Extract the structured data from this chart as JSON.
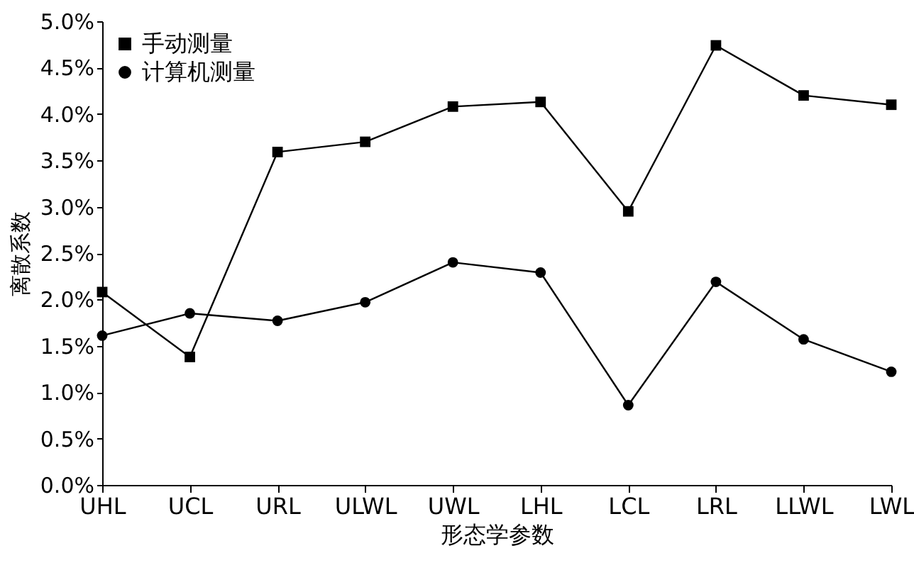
{
  "chart_data": {
    "type": "line",
    "xlabel": "形态学参数",
    "ylabel": "离散系数",
    "categories": [
      "UHL",
      "UCL",
      "URL",
      "ULWL",
      "UWL",
      "LHL",
      "LCL",
      "LRL",
      "LLWL",
      "LWL"
    ],
    "series": [
      {
        "name": "手动测量",
        "color": "#000000",
        "marker": "square",
        "values": [
          2.08,
          1.38,
          3.59,
          3.7,
          4.08,
          4.13,
          2.95,
          4.74,
          4.2,
          4.1
        ]
      },
      {
        "name": "计算机测量",
        "color": "#000000",
        "marker": "circle",
        "values": [
          1.61,
          1.85,
          1.77,
          1.97,
          2.4,
          2.29,
          0.86,
          2.19,
          1.57,
          1.22
        ]
      }
    ],
    "ylim": [
      0,
      5
    ],
    "yticks": [
      {
        "value": 0,
        "label": "0.0%"
      },
      {
        "value": 0.5,
        "label": "0.5%"
      },
      {
        "value": 1,
        "label": "1.0%"
      },
      {
        "value": 1.5,
        "label": "1.5%"
      },
      {
        "value": 2,
        "label": "2.0%"
      },
      {
        "value": 2.5,
        "label": "2.5%"
      },
      {
        "value": 3,
        "label": "3.0%"
      },
      {
        "value": 3.5,
        "label": "3.5%"
      },
      {
        "value": 4,
        "label": "4.0%"
      },
      {
        "value": 4.5,
        "label": "4.5%"
      },
      {
        "value": 5,
        "label": "5.0%"
      }
    ],
    "grid": false,
    "legend": "top left",
    "line_style": "solid"
  }
}
